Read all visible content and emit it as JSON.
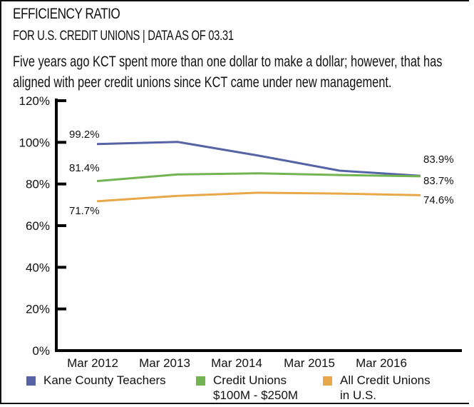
{
  "header": {
    "title": "EFFICIENCY RATIO",
    "subtitle": "FOR U.S. CREDIT UNIONS | DATA AS OF 03.31",
    "description_line1": "Five years ago KCT spent more than one dollar to make a dollar; however, that has",
    "description_line2": "aligned with peer credit unions since KCT came under new management."
  },
  "legend": [
    {
      "line1": "Kane County Teachers",
      "line2": "",
      "color": "#5663a6"
    },
    {
      "line1": "Credit Unions",
      "line2": "$100M - $250M",
      "color": "#72b451"
    },
    {
      "line1": "All Credit Unions",
      "line2": "in U.S.",
      "color": "#e8a84a"
    }
  ],
  "chart_data": {
    "type": "line",
    "title": "EFFICIENCY RATIO",
    "subtitle": "FOR U.S. CREDIT UNIONS | DATA AS OF 03.31",
    "xlabel": "",
    "ylabel": "",
    "categories": [
      "Mar 2012",
      "Mar 2013",
      "Mar 2014",
      "Mar 2015",
      "Mar 2016"
    ],
    "y_ticks": [
      "0%",
      "20%",
      "40%",
      "60%",
      "80%",
      "100%",
      "120%"
    ],
    "y_tick_values": [
      0,
      20,
      40,
      60,
      80,
      100,
      120
    ],
    "ylim": [
      0,
      120
    ],
    "grid": false,
    "legend_position": "bottom",
    "series": [
      {
        "name": "Kane County Teachers",
        "color": "#5663a6",
        "values": [
          99.2,
          100.2,
          93.6,
          86.4,
          83.9
        ],
        "start_label": "99.2%",
        "end_label": "83.9%"
      },
      {
        "name": "Credit Unions $100M - $250M",
        "color": "#72b451",
        "values": [
          81.4,
          84.6,
          85.1,
          84.3,
          83.7
        ],
        "start_label": "81.4%",
        "end_label": "83.7%"
      },
      {
        "name": "All Credit Unions in U.S.",
        "color": "#e8a84a",
        "values": [
          71.7,
          74.3,
          75.8,
          75.4,
          74.6
        ],
        "start_label": "71.7%",
        "end_label": "74.6%"
      }
    ]
  }
}
